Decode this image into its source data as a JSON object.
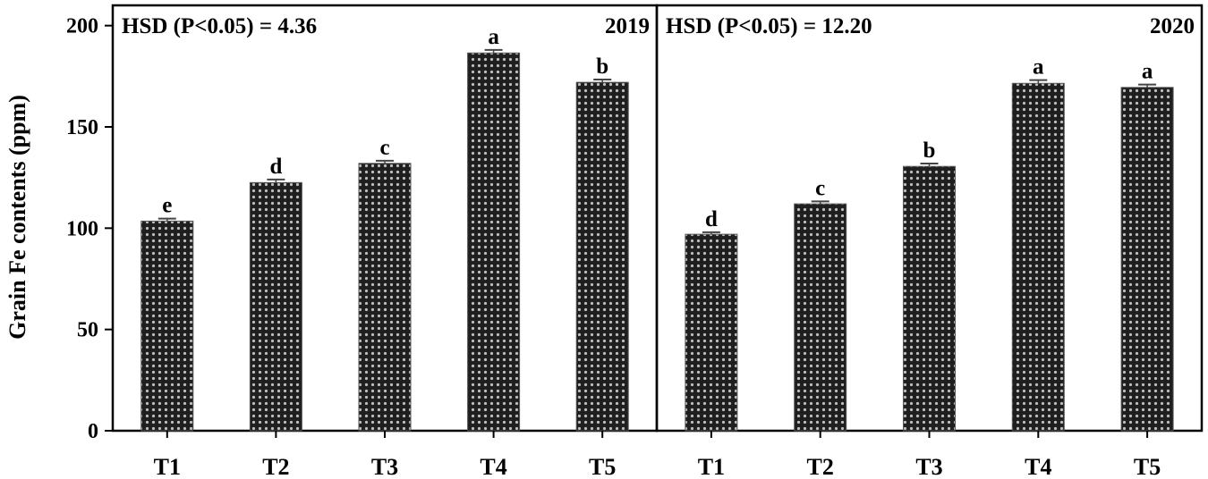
{
  "colors": {
    "bar_fill": "#1f1f1f",
    "bar_dot": "#bdbdbd",
    "axis": "#000000",
    "background": "#ffffff"
  },
  "ylabel": "Grain Fe contents (ppm)",
  "chart_data": [
    {
      "type": "bar",
      "categories": [
        "T1",
        "T2",
        "T3",
        "T4",
        "T5"
      ],
      "values": [
        103.5,
        122.5,
        132,
        186.5,
        172
      ],
      "errors": [
        1.2,
        1.5,
        1.3,
        1.5,
        1.4
      ],
      "letters": [
        "e",
        "d",
        "c",
        "a",
        "b"
      ],
      "annotation": "HSD (P<0.05) = 4.36",
      "year": "2019",
      "ylabel": "Grain Fe contents (ppm)",
      "yticks": [
        0,
        50,
        100,
        150,
        200
      ],
      "ylim": [
        0,
        210
      ],
      "grid": false
    },
    {
      "type": "bar",
      "categories": [
        "T1",
        "T2",
        "T3",
        "T4",
        "T5"
      ],
      "values": [
        97,
        112,
        130.5,
        171.5,
        169.5
      ],
      "errors": [
        1.0,
        1.2,
        1.4,
        1.6,
        1.4
      ],
      "letters": [
        "d",
        "c",
        "b",
        "a",
        "a"
      ],
      "annotation": "HSD (P<0.05) = 12.20",
      "year": "2020",
      "ylim": [
        0,
        210
      ],
      "grid": false
    }
  ]
}
